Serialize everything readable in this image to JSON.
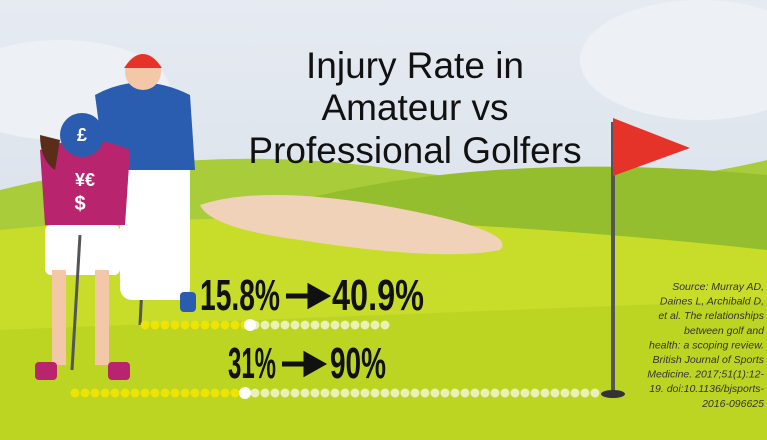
{
  "title": {
    "lines": [
      "Injury Rate in",
      "Amateur vs",
      "Professional Golfers"
    ]
  },
  "figure": {
    "cap_symbol": "£",
    "shirt_symbols": [
      "¥€",
      "$"
    ]
  },
  "stats": [
    {
      "from": "15.8%",
      "to": "40.9%"
    },
    {
      "from": "31%",
      "to": "90%"
    }
  ],
  "source": {
    "lines": [
      "Source:  Murray AD,",
      "Daines L, Archibald D,",
      "et al.  The relationships",
      "between golf and",
      "health: a scoping review.",
      "British Journal of Sports",
      "Medicine. 2017;51(1):12-",
      "19. doi:10.1136/bjsports-",
      "2016-096625"
    ]
  }
}
